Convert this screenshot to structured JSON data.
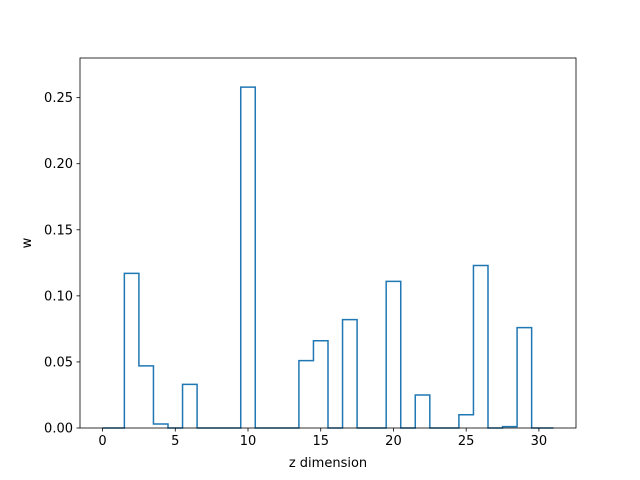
{
  "chart_data": {
    "type": "step",
    "title": "",
    "xlabel": "z dimension",
    "ylabel": "w",
    "xlim": [
      -1.55,
      32.55
    ],
    "ylim": [
      0.0,
      0.28
    ],
    "xticks": [
      0,
      5,
      10,
      15,
      20,
      25,
      30
    ],
    "xtick_labels": [
      "0",
      "5",
      "10",
      "15",
      "20",
      "25",
      "30"
    ],
    "yticks": [
      0.0,
      0.05,
      0.1,
      0.15,
      0.2,
      0.25
    ],
    "ytick_labels": [
      "0.00",
      "0.05",
      "0.10",
      "0.15",
      "0.20",
      "0.25"
    ],
    "grid": false,
    "legend": "none",
    "step_where": "mid",
    "x": [
      0,
      1,
      2,
      3,
      4,
      5,
      6,
      7,
      8,
      9,
      10,
      11,
      12,
      13,
      14,
      15,
      16,
      17,
      18,
      19,
      20,
      21,
      22,
      23,
      24,
      25,
      26,
      27,
      28,
      29,
      30,
      31
    ],
    "series": [
      {
        "values": [
          0.0,
          0.0,
          0.117,
          0.047,
          0.003,
          0.0,
          0.033,
          0.0,
          0.0,
          0.0,
          0.258,
          0.0,
          0.0,
          0.0,
          0.051,
          0.066,
          0.0,
          0.082,
          0.0,
          0.0,
          0.111,
          0.0,
          0.025,
          0.0,
          0.0,
          0.01,
          0.123,
          0.0,
          0.001,
          0.076,
          0.0,
          0.0
        ],
        "color": "#1f77b4"
      }
    ]
  }
}
